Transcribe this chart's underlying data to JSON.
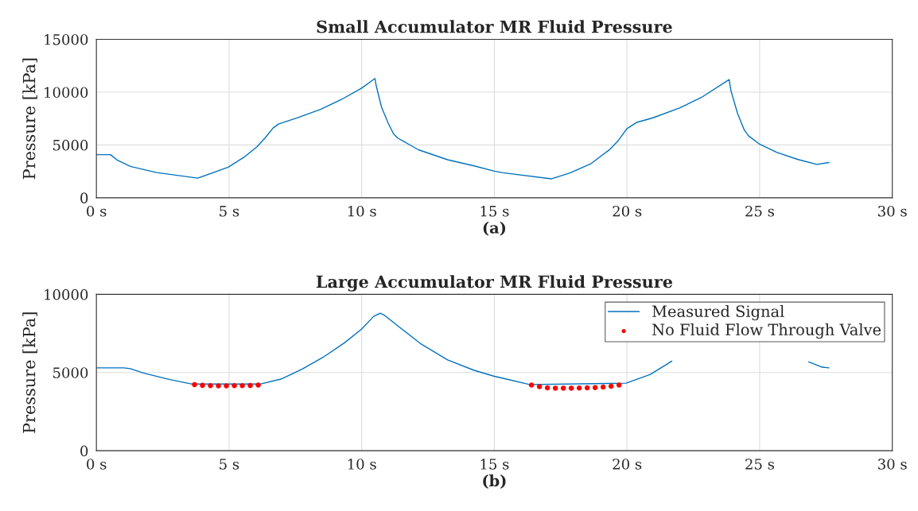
{
  "chart_data": [
    {
      "type": "line",
      "title": "Small Accumulator MR Fluid Pressure",
      "xlabel": "(a)",
      "ylabel": "Pressure [kPa]",
      "xlim": [
        0,
        30
      ],
      "xticks": [
        {
          "value": 0,
          "label": "0 s"
        },
        {
          "value": 5,
          "label": "5 s"
        },
        {
          "value": 10,
          "label": "10 s"
        },
        {
          "value": 15,
          "label": "15 s"
        },
        {
          "value": 20,
          "label": "20 s"
        },
        {
          "value": 25,
          "label": "25 s"
        },
        {
          "value": 30,
          "label": "30 s"
        }
      ],
      "ylim": [
        0,
        15000
      ],
      "yticks": [
        0,
        5000,
        10000,
        15000
      ],
      "grid": true,
      "series": [
        {
          "color": "#0072bd",
          "line_style": "solid",
          "x": [
            0,
            0.53,
            0.78,
            1.28,
            2.27,
            3.82,
            4.97,
            5.56,
            6.06,
            6.36,
            6.66,
            6.86,
            7.56,
            8.45,
            9.25,
            10.0,
            10.5,
            10.55,
            10.75,
            11.0,
            11.2,
            11.35,
            12.14,
            13.24,
            14.24,
            15.0,
            15.33,
            17.14,
            17.85,
            18.65,
            19.36,
            19.67,
            20.0,
            20.37,
            20.98,
            22.0,
            22.8,
            23.85,
            23.92,
            24.17,
            24.42,
            24.58,
            25.0,
            25.64,
            26.45,
            27.16,
            27.61
          ],
          "values": [
            4080,
            4080,
            3580,
            2970,
            2390,
            1860,
            2900,
            3830,
            4840,
            5670,
            6600,
            6980,
            7560,
            8370,
            9320,
            10380,
            11290,
            10580,
            8570,
            7060,
            6050,
            5670,
            4540,
            3600,
            3020,
            2520,
            2370,
            1790,
            2350,
            3240,
            4590,
            5410,
            6550,
            7140,
            7570,
            8520,
            9490,
            11190,
            10120,
            7960,
            6430,
            5870,
            5070,
            4310,
            3620,
            3160,
            3340
          ]
        }
      ]
    },
    {
      "type": "line",
      "title": "Large Accumulator MR Fluid Pressure",
      "xlabel": "(b)",
      "ylabel": "Pressure [kPa]",
      "xlim": [
        0,
        30
      ],
      "xticks": [
        {
          "value": 0,
          "label": "0 s"
        },
        {
          "value": 5,
          "label": "5 s"
        },
        {
          "value": 10,
          "label": "10 s"
        },
        {
          "value": 15,
          "label": "15 s"
        },
        {
          "value": 20,
          "label": "20 s"
        },
        {
          "value": 25,
          "label": "25 s"
        },
        {
          "value": 30,
          "label": "30 s"
        }
      ],
      "ylim": [
        0,
        10000
      ],
      "yticks": [
        0,
        5000,
        10000
      ],
      "grid": true,
      "legend": "top right",
      "series": [
        {
          "name": "Measured Signal",
          "color": "#0072bd",
          "line_style": "solid",
          "x": [
            0,
            1.03,
            1.28,
            1.77,
            2.77,
            3.62,
            6.16,
            6.96,
            7.76,
            8.55,
            9.35,
            10.0,
            10.45,
            10.7,
            10.85,
            11.35,
            12.24,
            13.24,
            14.24,
            15.0,
            15.33,
            16.33,
            19.97,
            20.88,
            21.69,
            24.0,
            26.85,
            27.36,
            27.61
          ],
          "values": [
            5300,
            5300,
            5250,
            4970,
            4550,
            4260,
            4260,
            4580,
            5220,
            5980,
            6900,
            7780,
            8590,
            8790,
            8670,
            8000,
            6820,
            5810,
            5140,
            4760,
            4630,
            4230,
            4320,
            4880,
            5730,
            null,
            5680,
            5340,
            5300
          ]
        },
        {
          "type": "scatter",
          "name": "No Fluid Flow Through Valve",
          "color": "#ff0000",
          "marker": "circle",
          "x": [
            3.7,
            4.0,
            4.3,
            4.6,
            4.9,
            5.2,
            5.5,
            5.8,
            6.1,
            16.4,
            16.7,
            17.0,
            17.3,
            17.6,
            17.9,
            18.2,
            18.5,
            18.8,
            19.1,
            19.4,
            19.7
          ],
          "values": [
            4230,
            4180,
            4160,
            4150,
            4150,
            4160,
            4160,
            4170,
            4200,
            4200,
            4100,
            4020,
            4000,
            4000,
            4000,
            4010,
            4020,
            4040,
            4070,
            4120,
            4200
          ]
        }
      ]
    }
  ]
}
